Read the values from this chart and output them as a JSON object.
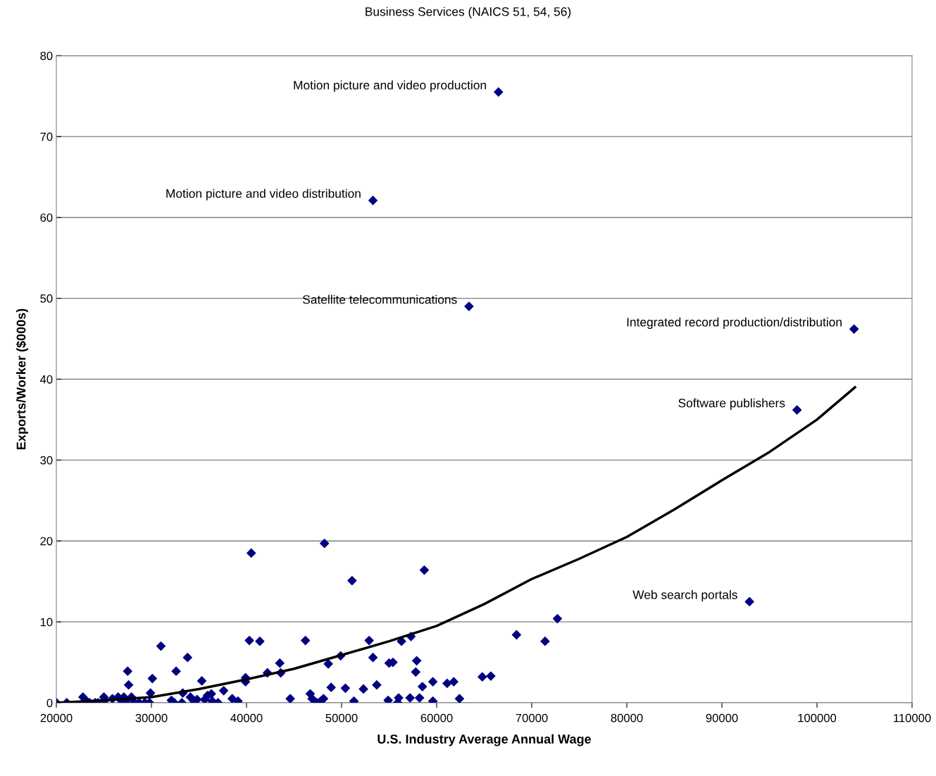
{
  "chart_data": {
    "type": "scatter",
    "title": "Business Services (NAICS 51, 54, 56)",
    "xlabel": "U.S. Industry Average Annual Wage",
    "ylabel": "Exports/Worker ($000s)",
    "xlim": [
      20000,
      110000
    ],
    "xticks": [
      20000,
      30000,
      40000,
      50000,
      60000,
      70000,
      80000,
      90000,
      100000,
      110000
    ],
    "ylim": [
      0,
      80
    ],
    "yticks": [
      0,
      10,
      20,
      30,
      40,
      50,
      60,
      70,
      80
    ],
    "grid": "y",
    "marker": "diamond",
    "series": [
      {
        "color": "#000080",
        "x": [
          20000,
          21100,
          22800,
          23100,
          23500,
          24100,
          24400,
          25000,
          25100,
          25900,
          26500,
          26800,
          27100,
          27400,
          27500,
          27600,
          27900,
          28200,
          28700,
          29300,
          29800,
          29900,
          30100,
          31000,
          32100,
          32400,
          32600,
          33200,
          33300,
          33800,
          34100,
          34400,
          34800,
          35300,
          35600,
          35900,
          36300,
          36400,
          37000,
          37600,
          38500,
          39100,
          39900,
          39900,
          40300,
          40500,
          41400,
          42200,
          43500,
          43600,
          44600,
          46200,
          46700,
          46900,
          47400,
          47800,
          48100,
          48200,
          48600,
          48900,
          49900,
          50400,
          51100,
          51300,
          52300,
          52900,
          53300,
          53700,
          54900,
          55000,
          55400,
          55900,
          56000,
          56300,
          57200,
          57300,
          57800,
          57900,
          58200,
          58500,
          58700,
          59600,
          59600,
          61100,
          61800,
          62400,
          63400,
          64800,
          65700,
          66500,
          68400,
          71400,
          72700,
          92900,
          97900,
          103900,
          53300
        ],
        "values": [
          0,
          0,
          0.7,
          0.3,
          0,
          0,
          0,
          0.7,
          0.3,
          0.5,
          0.7,
          0.3,
          0.7,
          0.3,
          3.9,
          2.2,
          0.7,
          0,
          0,
          0,
          0,
          1.2,
          3.0,
          7.0,
          0.3,
          0,
          3.9,
          0,
          1.2,
          5.6,
          0.7,
          0.3,
          0.4,
          2.7,
          0.4,
          0.9,
          1.1,
          0.2,
          0,
          1.5,
          0.5,
          0.2,
          3.1,
          2.6,
          7.7,
          18.5,
          7.6,
          3.7,
          4.9,
          3.7,
          0.5,
          7.7,
          1.1,
          0.5,
          0,
          0.2,
          0.5,
          19.7,
          4.8,
          1.9,
          5.8,
          1.8,
          15.1,
          0.2,
          1.7,
          7.7,
          5.6,
          2.2,
          0.3,
          4.9,
          5.0,
          0,
          0.6,
          7.6,
          0.6,
          8.2,
          3.8,
          5.2,
          0.6,
          2.0,
          16.4,
          2.6,
          0.2,
          2.4,
          2.6,
          0.5,
          49.0,
          3.2,
          3.3,
          75.5,
          8.4,
          7.6,
          10.4,
          12.5,
          36.2,
          46.2,
          62.1
        ]
      },
      {
        "type": "line",
        "color": "#000000",
        "marker": "none",
        "x": [
          20000,
          25000,
          30000,
          35000,
          40000,
          45000,
          50000,
          55000,
          60000,
          65000,
          70000,
          75000,
          80000,
          85000,
          90000,
          95000,
          100000,
          104000
        ],
        "values": [
          0,
          0.3,
          0.7,
          1.7,
          2.9,
          4.2,
          5.9,
          7.6,
          9.5,
          12.2,
          15.3,
          17.8,
          20.5,
          23.9,
          27.5,
          31.0,
          35.0,
          39.0
        ]
      }
    ],
    "annotations": [
      {
        "text": "Motion picture and video production",
        "x": 66500,
        "y": 75.5
      },
      {
        "text": "Motion picture and video distribution",
        "x": 53300,
        "y": 62.1
      },
      {
        "text": "Satellite telecommunications",
        "x": 63400,
        "y": 49.0
      },
      {
        "text": "Integrated record production/distribution",
        "x": 103900,
        "y": 46.2
      },
      {
        "text": "Software publishers",
        "x": 97900,
        "y": 36.2
      },
      {
        "text": "Web search portals",
        "x": 92900,
        "y": 12.5
      }
    ]
  }
}
